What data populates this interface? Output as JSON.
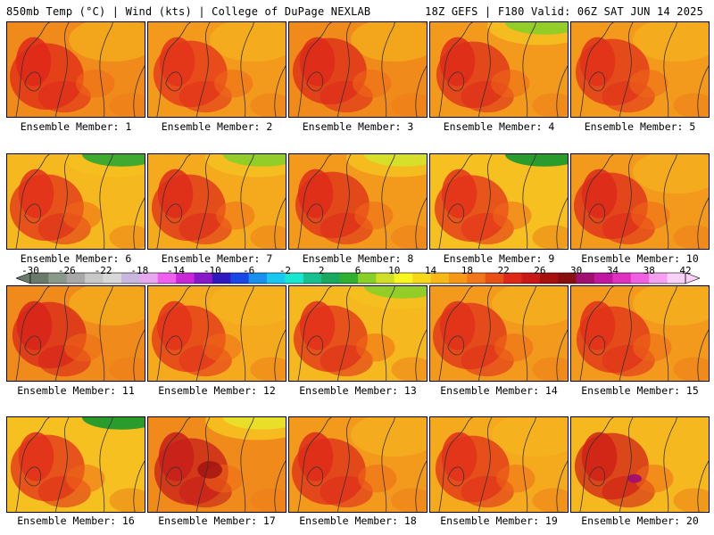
{
  "header": {
    "left": "850mb Temp (°C) | Wind (kts) | College of DuPage NEXLAB",
    "right": "18Z GEFS | F180 Valid: 06Z SAT JUN 14 2025"
  },
  "members": [
    {
      "caption": "Ensemble Member: 1",
      "base": "#f08a1a",
      "hot": "#e0281a",
      "cool": null
    },
    {
      "caption": "Ensemble Member: 2",
      "base": "#f39a1c",
      "hot": "#e3321a",
      "cool": null
    },
    {
      "caption": "Ensemble Member: 3",
      "base": "#f08a1a",
      "hot": "#dd2a1a",
      "cool": null
    },
    {
      "caption": "Ensemble Member: 4",
      "base": "#f39a1c",
      "hot": "#de2c1a",
      "cool": "#8ccf28"
    },
    {
      "caption": "Ensemble Member: 5",
      "base": "#f39a1c",
      "hot": "#e0301a",
      "cool": null
    },
    {
      "caption": "Ensemble Member: 6",
      "base": "#f5b81e",
      "hot": "#e0301a",
      "cool": "#36a830"
    },
    {
      "caption": "Ensemble Member: 7",
      "base": "#f5aa1e",
      "hot": "#de2c1a",
      "cool": "#8ccf28"
    },
    {
      "caption": "Ensemble Member: 8",
      "base": "#f39a1c",
      "hot": "#de2c1a",
      "cool": "#d4e02a"
    },
    {
      "caption": "Ensemble Member: 9",
      "base": "#f5c020",
      "hot": "#e3321a",
      "cool": "#1f9a2e"
    },
    {
      "caption": "Ensemble Member: 10",
      "base": "#f39a1c",
      "hot": "#dd2a1a",
      "cool": null
    },
    {
      "caption": "Ensemble Member: 11",
      "base": "#f08a1a",
      "hot": "#d8241a",
      "cool": null
    },
    {
      "caption": "Ensemble Member: 12",
      "base": "#f5aa1e",
      "hot": "#e3321a",
      "cool": null
    },
    {
      "caption": "Ensemble Member: 13",
      "base": "#f5b81e",
      "hot": "#e0301a",
      "cool": "#8ccf28"
    },
    {
      "caption": "Ensemble Member: 14",
      "base": "#f39a1c",
      "hot": "#e0301a",
      "cool": null
    },
    {
      "caption": "Ensemble Member: 15",
      "base": "#f39a1c",
      "hot": "#e0301a",
      "cool": null
    },
    {
      "caption": "Ensemble Member: 16",
      "base": "#f5c020",
      "hot": "#e0301a",
      "cool": "#1f9a2e"
    },
    {
      "caption": "Ensemble Member: 17",
      "base": "#f08a1a",
      "hot": "#c81e1a",
      "cool": "#e8e02a"
    },
    {
      "caption": "Ensemble Member: 18",
      "base": "#f39a1c",
      "hot": "#de2c1a",
      "cool": null
    },
    {
      "caption": "Ensemble Member: 19",
      "base": "#f5aa1e",
      "hot": "#e0301a",
      "cool": null
    },
    {
      "caption": "Ensemble Member: 20",
      "base": "#f5b81e",
      "hot": "#d02218",
      "cool": null
    }
  ],
  "colorbar": {
    "ticks": [
      "-30",
      "-26",
      "-22",
      "-18",
      "-14",
      "-10",
      "-6",
      "-2",
      "2",
      "6",
      "10",
      "14",
      "18",
      "22",
      "26",
      "30",
      "34",
      "38",
      "42"
    ],
    "colors": [
      "#6a7a6a",
      "#8a9a8a",
      "#a8a8a8",
      "#c8c8c8",
      "#d8d8d8",
      "#c8b8e0",
      "#e8a8f0",
      "#f060f0",
      "#c828d8",
      "#8818c8",
      "#3018c0",
      "#1848e8",
      "#1890f0",
      "#18c8f0",
      "#18e8d0",
      "#18c090",
      "#18a860",
      "#30b030",
      "#88d028",
      "#d0e028",
      "#f8f820",
      "#f8d818",
      "#f8b818",
      "#f89818",
      "#f07818",
      "#e85018",
      "#e02818",
      "#c81818",
      "#a81010",
      "#881010",
      "#a01070",
      "#c018a0",
      "#e030c0",
      "#f060e0",
      "#f8a0f0",
      "#f8d0f8"
    ]
  }
}
